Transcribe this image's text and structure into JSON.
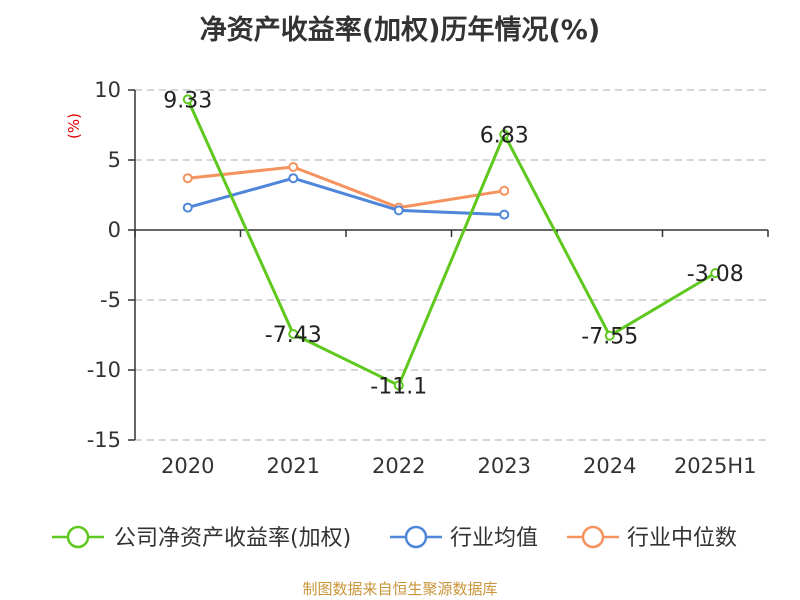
{
  "chart_data": {
    "type": "line",
    "title": "净资产收益率(加权)历年情况(%)",
    "ylabel": "(%)",
    "categories": [
      "2020",
      "2021",
      "2022",
      "2023",
      "2024",
      "2025H1"
    ],
    "ylim": [
      -15,
      10
    ],
    "yticks": [
      10,
      5,
      0,
      -5,
      -10,
      -15
    ],
    "grid": true,
    "legend_position": "bottom",
    "series": [
      {
        "name": "公司净资产收益率(加权)",
        "color": "#5fc81e",
        "values": [
          9.33,
          -7.43,
          -11.1,
          6.83,
          -7.55,
          -3.08
        ],
        "labels": [
          "9.33",
          "-7.43",
          "-11.1",
          "6.83",
          "-7.55",
          "-3.08"
        ]
      },
      {
        "name": "行业均值",
        "color": "#4e86d9",
        "values": [
          1.6,
          3.7,
          1.4,
          1.1,
          null,
          null
        ]
      },
      {
        "name": "行业中位数",
        "color": "#f5925e",
        "values": [
          3.7,
          4.5,
          1.6,
          2.8,
          null,
          null
        ]
      }
    ]
  },
  "footer": {
    "source": "制图数据来自恒生聚源数据库"
  }
}
